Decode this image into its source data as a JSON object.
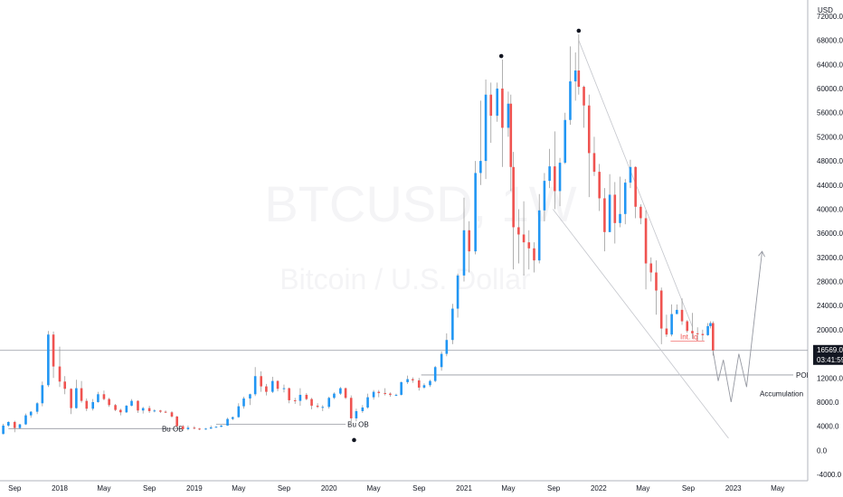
{
  "chart_data": {
    "type": "candlestick",
    "title": "",
    "watermark": {
      "symbol": "BTCUSD, 1W",
      "description": "Bitcoin / U.S. Dollar"
    },
    "currency_label": "USD",
    "ylim": [
      -4000,
      72000
    ],
    "y_ticks": [
      -4000,
      0,
      4000,
      8000,
      12000,
      16000,
      20000,
      24000,
      28000,
      32000,
      36000,
      40000,
      44000,
      48000,
      52000,
      56000,
      60000,
      64000,
      68000,
      72000
    ],
    "x_ticks": [
      "Sep",
      "2018",
      "May",
      "Sep",
      "2019",
      "May",
      "Sep",
      "2020",
      "May",
      "Sep",
      "2021",
      "May",
      "Sep",
      "2022",
      "May",
      "Sep",
      "2023",
      "May"
    ],
    "up_color": "#2196f3",
    "down_color": "#ef5350",
    "price_badge": {
      "value": "16569.0",
      "countdown": "03:41:59",
      "price": 16569
    },
    "levels": [
      {
        "name": "current-price-line",
        "price": 16569
      },
      {
        "name": "poi-line",
        "price": 12500,
        "label": "POI"
      },
      {
        "name": "bu-ob-2018",
        "price": 3600,
        "label": "Bu OB"
      },
      {
        "name": "bu-ob-2020",
        "price": 4300,
        "label": "Bu OB"
      }
    ],
    "annotations": [
      {
        "label": "Int. lq",
        "price": 18400
      },
      {
        "label": "Accumulation",
        "price": 9000
      }
    ],
    "peak_markers": [
      {
        "date": "2021-04-12",
        "price": 64800
      },
      {
        "date": "2021-11-08",
        "price": 69000
      },
      {
        "date": "2020-03-09",
        "price": 3800
      }
    ],
    "wedge": {
      "upper": [
        [
          "2021-11-08",
          68000
        ],
        [
          "2022-09-12",
          20500
        ]
      ],
      "lower": [
        [
          "2021-08-30",
          40000
        ],
        [
          "2022-12-19",
          2000
        ]
      ]
    },
    "projection": {
      "points": [
        [
          "2022-11-07",
          16500
        ],
        [
          "2022-11-21",
          11500
        ],
        [
          "2022-12-05",
          15000
        ],
        [
          "2022-12-26",
          8000
        ],
        [
          "2023-01-16",
          16000
        ],
        [
          "2023-02-06",
          10500
        ],
        [
          "2023-03-20",
          33000
        ]
      ]
    },
    "candles": [
      {
        "d": "2017-07-01",
        "o": 2500,
        "c": 2900,
        "h": 3000,
        "l": 2400
      },
      {
        "d": "2017-07-15",
        "o": 2900,
        "c": 2700,
        "h": 3100,
        "l": 2500
      },
      {
        "d": "2017-08-01",
        "o": 2700,
        "c": 4100,
        "h": 4400,
        "l": 2650
      },
      {
        "d": "2017-08-15",
        "o": 4100,
        "c": 4700,
        "h": 4800,
        "l": 3900
      },
      {
        "d": "2017-09-01",
        "o": 4700,
        "c": 3700,
        "h": 4900,
        "l": 3000
      },
      {
        "d": "2017-09-15",
        "o": 3700,
        "c": 4300,
        "h": 4400,
        "l": 3500
      },
      {
        "d": "2017-10-01",
        "o": 4300,
        "c": 5800,
        "h": 6100,
        "l": 4200
      },
      {
        "d": "2017-10-15",
        "o": 5800,
        "c": 6400,
        "h": 6500,
        "l": 5400
      },
      {
        "d": "2017-11-01",
        "o": 6400,
        "c": 7800,
        "h": 8000,
        "l": 6000
      },
      {
        "d": "2017-11-15",
        "o": 7800,
        "c": 10800,
        "h": 11400,
        "l": 7300
      },
      {
        "d": "2017-12-01",
        "o": 10800,
        "c": 19200,
        "h": 19800,
        "l": 10500
      },
      {
        "d": "2017-12-15",
        "o": 19200,
        "c": 13900,
        "h": 19700,
        "l": 12000
      },
      {
        "d": "2018-01-01",
        "o": 13900,
        "c": 11400,
        "h": 17200,
        "l": 10500
      },
      {
        "d": "2018-01-15",
        "o": 11400,
        "c": 10200,
        "h": 12300,
        "l": 9300
      },
      {
        "d": "2018-02-01",
        "o": 10200,
        "c": 7000,
        "h": 10300,
        "l": 6000
      },
      {
        "d": "2018-02-15",
        "o": 7000,
        "c": 10300,
        "h": 11700,
        "l": 6900
      },
      {
        "d": "2018-03-01",
        "o": 10300,
        "c": 8200,
        "h": 11500,
        "l": 7900
      },
      {
        "d": "2018-03-15",
        "o": 8200,
        "c": 6900,
        "h": 8600,
        "l": 6500
      },
      {
        "d": "2018-04-01",
        "o": 6900,
        "c": 8000,
        "h": 8500,
        "l": 6600
      },
      {
        "d": "2018-04-15",
        "o": 8000,
        "c": 9300,
        "h": 9700,
        "l": 7900
      },
      {
        "d": "2018-05-01",
        "o": 9300,
        "c": 8500,
        "h": 9900,
        "l": 8300
      },
      {
        "d": "2018-05-15",
        "o": 8500,
        "c": 7500,
        "h": 8700,
        "l": 7200
      },
      {
        "d": "2018-06-01",
        "o": 7500,
        "c": 6700,
        "h": 7700,
        "l": 6500
      },
      {
        "d": "2018-06-15",
        "o": 6700,
        "c": 6300,
        "h": 6900,
        "l": 5800
      },
      {
        "d": "2018-07-01",
        "o": 6300,
        "c": 7400,
        "h": 7500,
        "l": 6200
      },
      {
        "d": "2018-07-15",
        "o": 7400,
        "c": 8200,
        "h": 8500,
        "l": 7300
      },
      {
        "d": "2018-08-01",
        "o": 8200,
        "c": 6600,
        "h": 8300,
        "l": 6200
      },
      {
        "d": "2018-08-15",
        "o": 6600,
        "c": 7000,
        "h": 7200,
        "l": 6100
      },
      {
        "d": "2018-09-01",
        "o": 7000,
        "c": 6500,
        "h": 7400,
        "l": 6200
      },
      {
        "d": "2018-09-15",
        "o": 6500,
        "c": 6600,
        "h": 6800,
        "l": 6300
      },
      {
        "d": "2018-10-01",
        "o": 6600,
        "c": 6400,
        "h": 6700,
        "l": 6200
      },
      {
        "d": "2018-10-15",
        "o": 6400,
        "c": 6300,
        "h": 6600,
        "l": 6200
      },
      {
        "d": "2018-11-01",
        "o": 6300,
        "c": 5600,
        "h": 6500,
        "l": 5400
      },
      {
        "d": "2018-11-15",
        "o": 5600,
        "c": 4000,
        "h": 5700,
        "l": 3700
      },
      {
        "d": "2018-12-01",
        "o": 4000,
        "c": 3500,
        "h": 4200,
        "l": 3200
      },
      {
        "d": "2018-12-15",
        "o": 3500,
        "c": 3750,
        "h": 4100,
        "l": 3300
      },
      {
        "d": "2019-01-01",
        "o": 3750,
        "c": 3600,
        "h": 4000,
        "l": 3500
      },
      {
        "d": "2019-01-15",
        "o": 3600,
        "c": 3450,
        "h": 3700,
        "l": 3350
      },
      {
        "d": "2019-02-01",
        "o": 3450,
        "c": 3600,
        "h": 3700,
        "l": 3400
      },
      {
        "d": "2019-02-15",
        "o": 3600,
        "c": 3800,
        "h": 4100,
        "l": 3550
      },
      {
        "d": "2019-03-01",
        "o": 3800,
        "c": 3900,
        "h": 4000,
        "l": 3750
      },
      {
        "d": "2019-03-15",
        "o": 3900,
        "c": 4100,
        "h": 4200,
        "l": 3850
      },
      {
        "d": "2019-04-01",
        "o": 4100,
        "c": 5200,
        "h": 5400,
        "l": 4050
      },
      {
        "d": "2019-04-15",
        "o": 5200,
        "c": 5500,
        "h": 5600,
        "l": 5000
      },
      {
        "d": "2019-05-01",
        "o": 5500,
        "c": 7300,
        "h": 7800,
        "l": 5400
      },
      {
        "d": "2019-05-15",
        "o": 7300,
        "c": 8600,
        "h": 8900,
        "l": 6900
      },
      {
        "d": "2019-06-01",
        "o": 8600,
        "c": 9300,
        "h": 9400,
        "l": 7500
      },
      {
        "d": "2019-06-15",
        "o": 9300,
        "c": 12300,
        "h": 13800,
        "l": 9000
      },
      {
        "d": "2019-07-01",
        "o": 12300,
        "c": 10600,
        "h": 13100,
        "l": 9700
      },
      {
        "d": "2019-07-15",
        "o": 10600,
        "c": 9700,
        "h": 11000,
        "l": 9100
      },
      {
        "d": "2019-08-01",
        "o": 9700,
        "c": 11500,
        "h": 12200,
        "l": 9500
      },
      {
        "d": "2019-08-15",
        "o": 11500,
        "c": 10200,
        "h": 11600,
        "l": 9800
      },
      {
        "d": "2019-09-01",
        "o": 10200,
        "c": 10300,
        "h": 10900,
        "l": 9600
      },
      {
        "d": "2019-09-15",
        "o": 10300,
        "c": 8300,
        "h": 10400,
        "l": 7800
      },
      {
        "d": "2019-10-01",
        "o": 8300,
        "c": 8200,
        "h": 8700,
        "l": 7700
      },
      {
        "d": "2019-10-15",
        "o": 8200,
        "c": 9200,
        "h": 10300,
        "l": 7400
      },
      {
        "d": "2019-11-01",
        "o": 9200,
        "c": 8500,
        "h": 9500,
        "l": 8300
      },
      {
        "d": "2019-11-15",
        "o": 8500,
        "c": 7400,
        "h": 8700,
        "l": 6800
      },
      {
        "d": "2019-12-01",
        "o": 7400,
        "c": 7200,
        "h": 7800,
        "l": 7000
      },
      {
        "d": "2019-12-15",
        "o": 7200,
        "c": 7200,
        "h": 7500,
        "l": 6500
      },
      {
        "d": "2020-01-01",
        "o": 7200,
        "c": 8700,
        "h": 8900,
        "l": 6900
      },
      {
        "d": "2020-01-15",
        "o": 8700,
        "c": 9400,
        "h": 9600,
        "l": 8500
      },
      {
        "d": "2020-02-01",
        "o": 9400,
        "c": 10300,
        "h": 10500,
        "l": 9200
      },
      {
        "d": "2020-02-15",
        "o": 10300,
        "c": 8700,
        "h": 10400,
        "l": 8500
      },
      {
        "d": "2020-03-01",
        "o": 8700,
        "c": 5300,
        "h": 9100,
        "l": 3800
      },
      {
        "d": "2020-03-15",
        "o": 5300,
        "c": 6500,
        "h": 6900,
        "l": 4800
      },
      {
        "d": "2020-04-01",
        "o": 6500,
        "c": 7100,
        "h": 7500,
        "l": 6200
      },
      {
        "d": "2020-04-15",
        "o": 7100,
        "c": 8800,
        "h": 9400,
        "l": 6900
      },
      {
        "d": "2020-05-01",
        "o": 8800,
        "c": 9700,
        "h": 10000,
        "l": 8400
      },
      {
        "d": "2020-05-15",
        "o": 9700,
        "c": 9500,
        "h": 10000,
        "l": 8800
      },
      {
        "d": "2020-06-01",
        "o": 9500,
        "c": 9400,
        "h": 10300,
        "l": 9100
      },
      {
        "d": "2020-06-15",
        "o": 9400,
        "c": 9200,
        "h": 9600,
        "l": 8900
      },
      {
        "d": "2020-07-01",
        "o": 9200,
        "c": 9200,
        "h": 9400,
        "l": 9000
      },
      {
        "d": "2020-07-15",
        "o": 9200,
        "c": 11300,
        "h": 11400,
        "l": 9100
      },
      {
        "d": "2020-08-01",
        "o": 11300,
        "c": 11800,
        "h": 12400,
        "l": 11000
      },
      {
        "d": "2020-08-15",
        "o": 11800,
        "c": 11600,
        "h": 12100,
        "l": 11200
      },
      {
        "d": "2020-09-01",
        "o": 11600,
        "c": 10400,
        "h": 12000,
        "l": 9900
      },
      {
        "d": "2020-09-15",
        "o": 10400,
        "c": 10800,
        "h": 11100,
        "l": 10200
      },
      {
        "d": "2020-10-01",
        "o": 10800,
        "c": 11500,
        "h": 11700,
        "l": 10500
      },
      {
        "d": "2020-10-15",
        "o": 11500,
        "c": 13800,
        "h": 14000,
        "l": 11300
      },
      {
        "d": "2020-11-01",
        "o": 13800,
        "c": 16000,
        "h": 16400,
        "l": 13200
      },
      {
        "d": "2020-11-15",
        "o": 16000,
        "c": 18300,
        "h": 19400,
        "l": 15600
      },
      {
        "d": "2020-12-01",
        "o": 18300,
        "c": 23500,
        "h": 24300,
        "l": 17600
      },
      {
        "d": "2020-12-15",
        "o": 23500,
        "c": 29000,
        "h": 29300,
        "l": 22000
      },
      {
        "d": "2021-01-01",
        "o": 29000,
        "c": 36500,
        "h": 41900,
        "l": 28000
      },
      {
        "d": "2021-01-15",
        "o": 36500,
        "c": 33000,
        "h": 38000,
        "l": 29500
      },
      {
        "d": "2021-02-01",
        "o": 33000,
        "c": 46000,
        "h": 48000,
        "l": 32500
      },
      {
        "d": "2021-02-15",
        "o": 46000,
        "c": 48000,
        "h": 58000,
        "l": 44000
      },
      {
        "d": "2021-03-01",
        "o": 48000,
        "c": 59000,
        "h": 61500,
        "l": 45000
      },
      {
        "d": "2021-03-15",
        "o": 59000,
        "c": 55500,
        "h": 61000,
        "l": 51000
      },
      {
        "d": "2021-04-01",
        "o": 55500,
        "c": 60000,
        "h": 61000,
        "l": 54500
      },
      {
        "d": "2021-04-15",
        "o": 60000,
        "c": 53500,
        "h": 64800,
        "l": 47000
      },
      {
        "d": "2021-05-01",
        "o": 53500,
        "c": 57500,
        "h": 59500,
        "l": 52000
      },
      {
        "d": "2021-05-08",
        "o": 57500,
        "c": 47000,
        "h": 59000,
        "l": 43000
      },
      {
        "d": "2021-05-15",
        "o": 47000,
        "c": 37000,
        "h": 49500,
        "l": 30000
      },
      {
        "d": "2021-05-29",
        "o": 37000,
        "c": 35800,
        "h": 40000,
        "l": 31000
      },
      {
        "d": "2021-06-12",
        "o": 35800,
        "c": 34500,
        "h": 41300,
        "l": 29000
      },
      {
        "d": "2021-06-26",
        "o": 34500,
        "c": 33500,
        "h": 36500,
        "l": 30000
      },
      {
        "d": "2021-07-10",
        "o": 33500,
        "c": 31500,
        "h": 34500,
        "l": 29500
      },
      {
        "d": "2021-07-24",
        "o": 31500,
        "c": 39800,
        "h": 42500,
        "l": 31000
      },
      {
        "d": "2021-08-07",
        "o": 39800,
        "c": 44700,
        "h": 46000,
        "l": 38000
      },
      {
        "d": "2021-08-21",
        "o": 44700,
        "c": 47100,
        "h": 50000,
        "l": 43500
      },
      {
        "d": "2021-09-04",
        "o": 47100,
        "c": 43000,
        "h": 52900,
        "l": 40000
      },
      {
        "d": "2021-09-18",
        "o": 43000,
        "c": 47700,
        "h": 48500,
        "l": 40500
      },
      {
        "d": "2021-10-02",
        "o": 47700,
        "c": 54800,
        "h": 56000,
        "l": 47500
      },
      {
        "d": "2021-10-16",
        "o": 54800,
        "c": 61200,
        "h": 67000,
        "l": 54000
      },
      {
        "d": "2021-10-30",
        "o": 61200,
        "c": 63000,
        "h": 66000,
        "l": 58000
      },
      {
        "d": "2021-11-08",
        "o": 63000,
        "c": 60300,
        "h": 69000,
        "l": 59000
      },
      {
        "d": "2021-11-22",
        "o": 60300,
        "c": 57200,
        "h": 60500,
        "l": 53500
      },
      {
        "d": "2021-12-06",
        "o": 57200,
        "c": 49300,
        "h": 59000,
        "l": 42000
      },
      {
        "d": "2021-12-20",
        "o": 49300,
        "c": 46200,
        "h": 52000,
        "l": 45500
      },
      {
        "d": "2022-01-03",
        "o": 46200,
        "c": 41800,
        "h": 47500,
        "l": 39700
      },
      {
        "d": "2022-01-17",
        "o": 41800,
        "c": 36200,
        "h": 43500,
        "l": 33000
      },
      {
        "d": "2022-01-31",
        "o": 36200,
        "c": 42400,
        "h": 45800,
        "l": 36200
      },
      {
        "d": "2022-02-14",
        "o": 42400,
        "c": 37700,
        "h": 44500,
        "l": 34300
      },
      {
        "d": "2022-02-28",
        "o": 37700,
        "c": 39200,
        "h": 45400,
        "l": 37000
      },
      {
        "d": "2022-03-14",
        "o": 39200,
        "c": 44400,
        "h": 45000,
        "l": 37500
      },
      {
        "d": "2022-03-28",
        "o": 44400,
        "c": 47000,
        "h": 48200,
        "l": 43500
      },
      {
        "d": "2022-04-11",
        "o": 47000,
        "c": 40400,
        "h": 47100,
        "l": 38500
      },
      {
        "d": "2022-04-25",
        "o": 40400,
        "c": 38500,
        "h": 40800,
        "l": 37500
      },
      {
        "d": "2022-05-09",
        "o": 38500,
        "c": 31000,
        "h": 39800,
        "l": 26700
      },
      {
        "d": "2022-05-23",
        "o": 31000,
        "c": 29500,
        "h": 32000,
        "l": 28000
      },
      {
        "d": "2022-06-06",
        "o": 29500,
        "c": 26500,
        "h": 31500,
        "l": 22500
      },
      {
        "d": "2022-06-20",
        "o": 26500,
        "c": 20200,
        "h": 27000,
        "l": 17600
      },
      {
        "d": "2022-07-04",
        "o": 20200,
        "c": 19200,
        "h": 22500,
        "l": 18800
      },
      {
        "d": "2022-07-18",
        "o": 19200,
        "c": 22600,
        "h": 24200,
        "l": 18900
      },
      {
        "d": "2022-08-01",
        "o": 22600,
        "c": 23300,
        "h": 24200,
        "l": 22700
      },
      {
        "d": "2022-08-15",
        "o": 23300,
        "c": 21400,
        "h": 25200,
        "l": 20800
      },
      {
        "d": "2022-08-29",
        "o": 21400,
        "c": 19800,
        "h": 21600,
        "l": 19500
      },
      {
        "d": "2022-09-12",
        "o": 19800,
        "c": 19400,
        "h": 22800,
        "l": 18500
      },
      {
        "d": "2022-09-26",
        "o": 19400,
        "c": 19300,
        "h": 20400,
        "l": 18200
      },
      {
        "d": "2022-10-10",
        "o": 19300,
        "c": 19100,
        "h": 20000,
        "l": 18200
      },
      {
        "d": "2022-10-24",
        "o": 19100,
        "c": 20600,
        "h": 21100,
        "l": 19000
      },
      {
        "d": "2022-10-31",
        "o": 20600,
        "c": 21100,
        "h": 21400,
        "l": 20200
      },
      {
        "d": "2022-11-07",
        "o": 21100,
        "c": 16569,
        "h": 21400,
        "l": 15700
      }
    ]
  }
}
